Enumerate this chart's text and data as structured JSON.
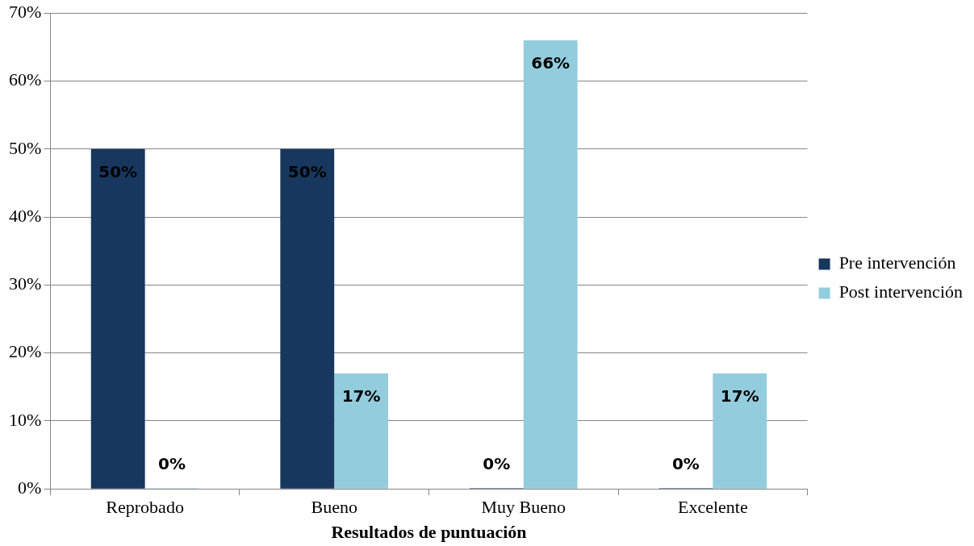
{
  "chart_data": {
    "type": "bar",
    "xlabel": "Resultados de puntuación",
    "categories": [
      "Reprobado",
      "Bueno",
      "Muy Bueno",
      "Excelente"
    ],
    "series": [
      {
        "name": "Pre intervención",
        "color": "#17375e",
        "values": [
          50,
          50,
          0,
          0
        ],
        "value_labels": [
          "50%",
          "50%",
          "0%",
          "0%"
        ]
      },
      {
        "name": "Post intervención",
        "color": "#93cddd",
        "values": [
          0,
          17,
          66,
          17
        ],
        "value_labels": [
          "0%",
          "17%",
          "66%",
          "17%"
        ]
      }
    ],
    "ylim": [
      0,
      70
    ],
    "yticks": [
      {
        "value": 0,
        "label": "0%"
      },
      {
        "value": 10,
        "label": "10%"
      },
      {
        "value": 20,
        "label": "20%"
      },
      {
        "value": 30,
        "label": "30%"
      },
      {
        "value": 40,
        "label": "40%"
      },
      {
        "value": 50,
        "label": "50%"
      },
      {
        "value": 60,
        "label": "60%"
      },
      {
        "value": 70,
        "label": "70%"
      }
    ],
    "grid": "y",
    "legend": "right"
  }
}
